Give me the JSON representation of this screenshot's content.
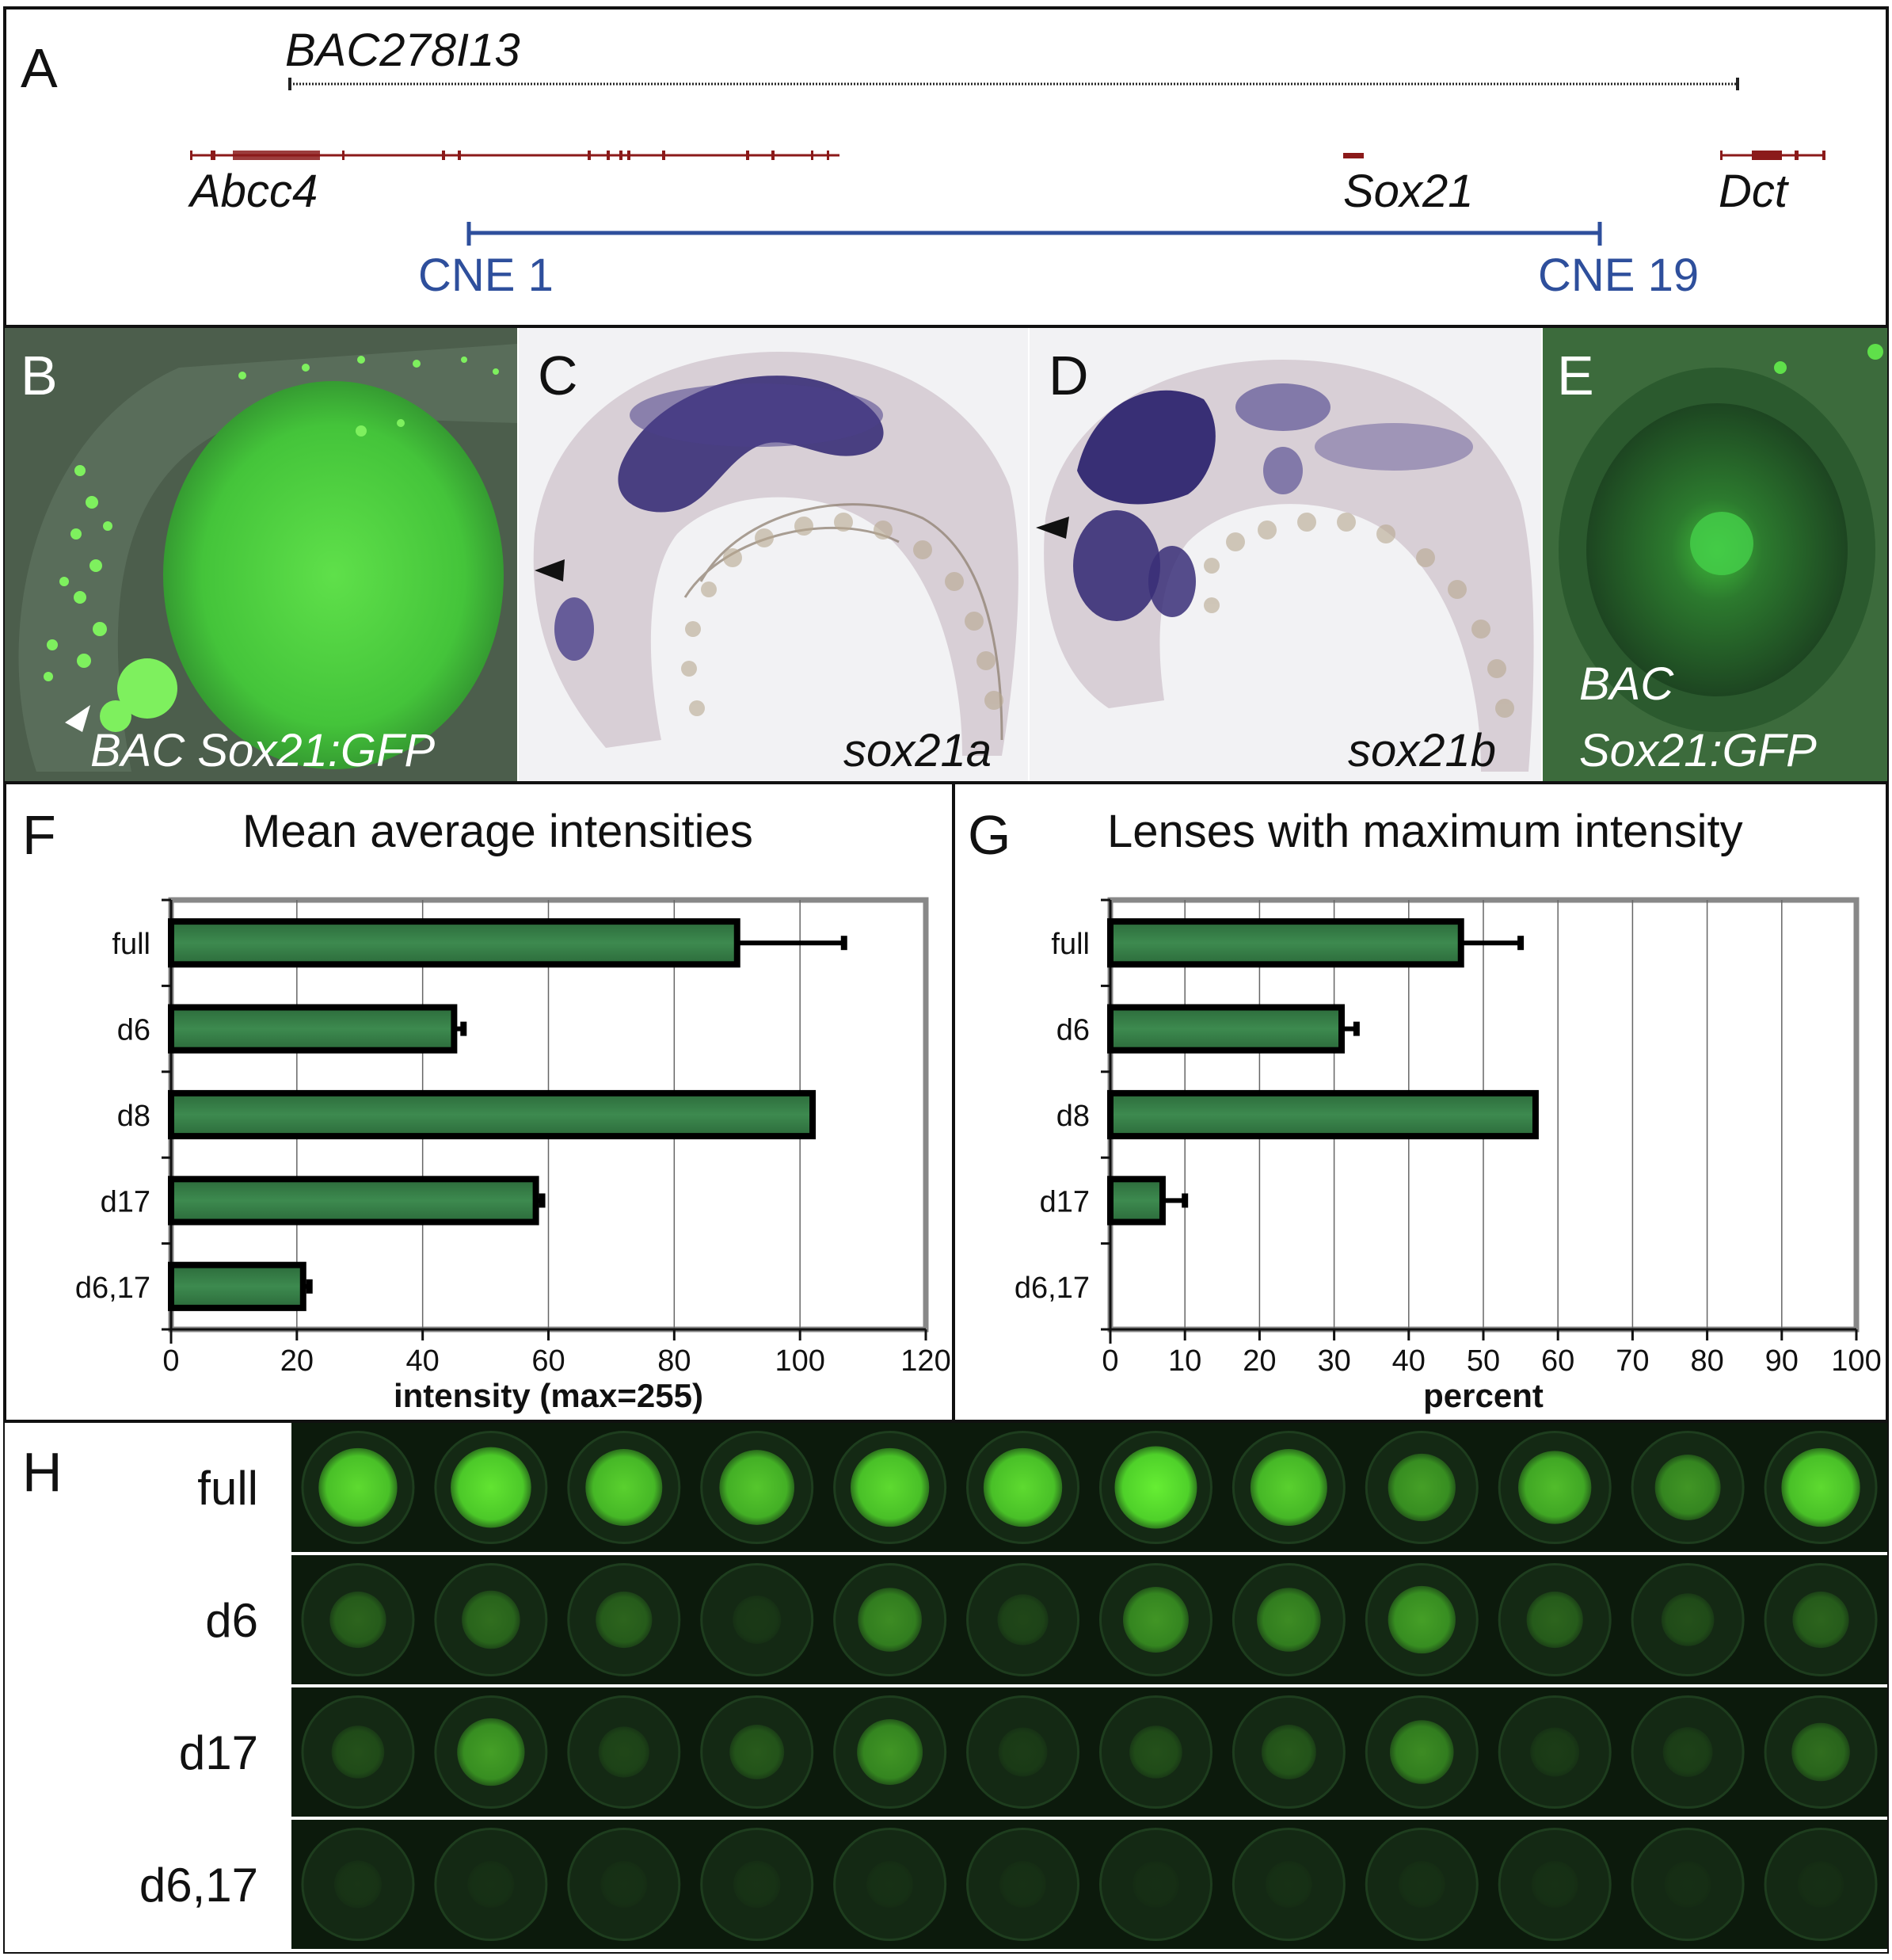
{
  "panel_a": {
    "letter": "A",
    "bac_label": "BAC278I13",
    "genes": [
      "Abcc4",
      "Sox21",
      "Dct"
    ],
    "cne_left": "CNE 1",
    "cne_right": "CNE 19",
    "colors": {
      "gene": "#8b1a1a",
      "cne": "#2e4f9c",
      "bac": "#222222"
    }
  },
  "panel_b": {
    "letter": "B",
    "caption": "BAC Sox21:GFP"
  },
  "panel_c": {
    "letter": "C",
    "caption": "sox21a"
  },
  "panel_d": {
    "letter": "D",
    "caption": "sox21b"
  },
  "panel_e": {
    "letter": "E",
    "caption_line1": "BAC",
    "caption_line2": "Sox21:GFP"
  },
  "chart_data": [
    {
      "panel": "F",
      "type": "bar",
      "orientation": "horizontal",
      "title": "Mean average intensities",
      "xlabel": "intensity (max=255)",
      "categories": [
        "full",
        "d6",
        "d8",
        "d17",
        "d6,17"
      ],
      "values": [
        90,
        45,
        102,
        58,
        21
      ],
      "errors": [
        17,
        1.5,
        0,
        1,
        1
      ],
      "xlim": [
        0,
        120
      ],
      "xticks": [
        0,
        20,
        40,
        60,
        80,
        100,
        120
      ],
      "grid": true,
      "bar_color": "#3d8a4f"
    },
    {
      "panel": "G",
      "type": "bar",
      "orientation": "horizontal",
      "title": "Lenses with maximum intensity",
      "xlabel": "percent",
      "categories": [
        "full",
        "d6",
        "d8",
        "d17",
        "d6,17"
      ],
      "values": [
        47,
        31,
        57,
        7,
        0
      ],
      "errors": [
        8,
        2,
        0,
        3,
        0
      ],
      "xlim": [
        0,
        100
      ],
      "xticks": [
        0,
        10,
        20,
        30,
        40,
        50,
        60,
        70,
        80,
        90,
        100
      ],
      "grid": true,
      "bar_color": "#3d8a4f"
    }
  ],
  "panel_h": {
    "letter": "H",
    "rows": [
      {
        "label": "full",
        "brightness": [
          0.9,
          0.95,
          0.85,
          0.8,
          0.9,
          0.9,
          1.0,
          0.85,
          0.6,
          0.75,
          0.55,
          0.9
        ]
      },
      {
        "label": "d6",
        "brightness": [
          0.3,
          0.35,
          0.3,
          0.08,
          0.5,
          0.15,
          0.55,
          0.5,
          0.6,
          0.3,
          0.2,
          0.3
        ]
      },
      {
        "label": "d17",
        "brightness": [
          0.2,
          0.6,
          0.15,
          0.25,
          0.55,
          0.1,
          0.2,
          0.25,
          0.5,
          0.1,
          0.12,
          0.35
        ]
      },
      {
        "label": "d6,17",
        "brightness": [
          0.06,
          0.04,
          0.04,
          0.05,
          0.04,
          0.04,
          0.03,
          0.04,
          0.04,
          0.04,
          0.03,
          0.03
        ]
      }
    ]
  }
}
